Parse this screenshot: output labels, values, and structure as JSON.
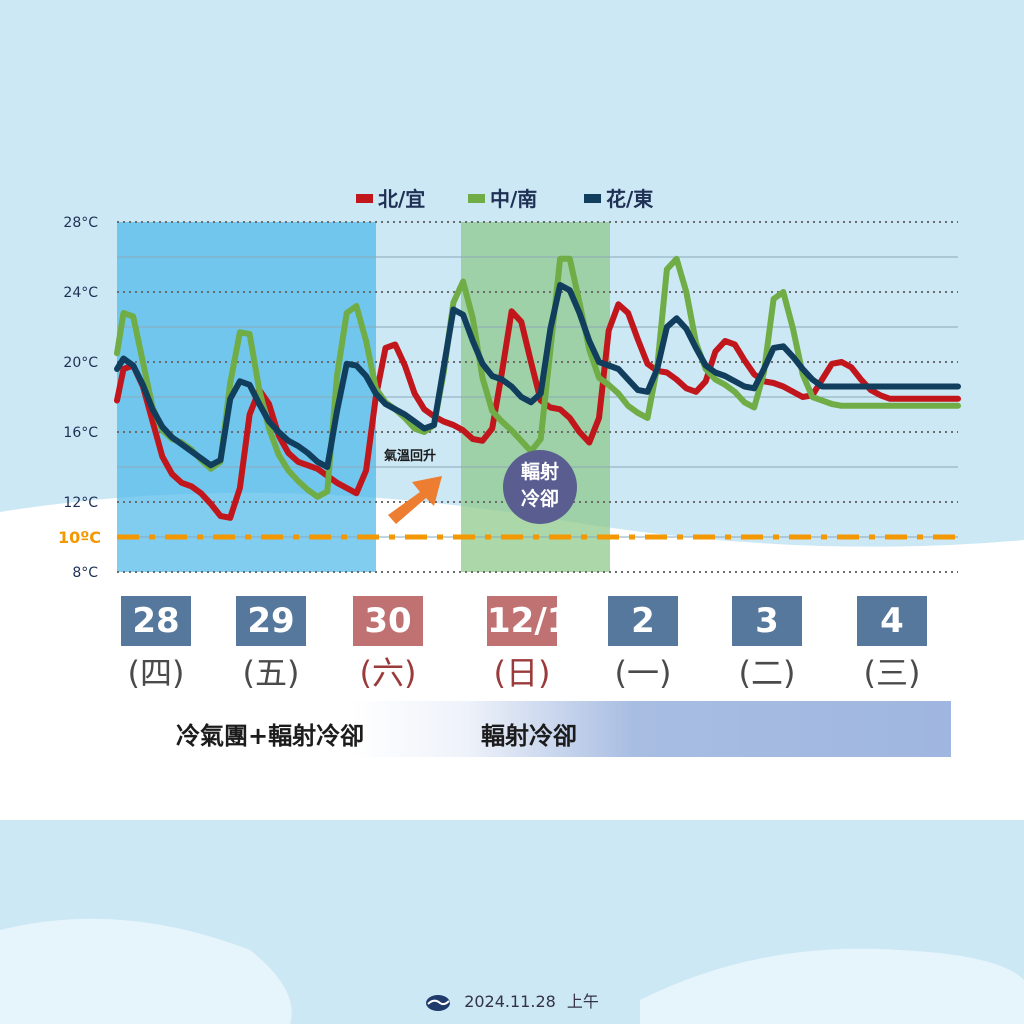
{
  "chart_data": {
    "type": "line",
    "ylim": [
      8,
      28
    ],
    "y_ticks": [
      "28°C",
      "24°C",
      "20°C",
      "16°C",
      "12°C",
      "8°C"
    ],
    "threshold_label": "10ºC",
    "threshold_value": 10,
    "legend": {
      "placement": "top-center"
    },
    "series": [
      {
        "name": "北/宜",
        "color": "#c0161c",
        "x": [
          0,
          0.1,
          0.25,
          0.4,
          0.55,
          0.7,
          0.85,
          1.0,
          1.15,
          1.3,
          1.45,
          1.6,
          1.75,
          1.9,
          2.05,
          2.2,
          2.35,
          2.5,
          2.65,
          2.8,
          2.95,
          3.1,
          3.25,
          3.4,
          3.55,
          3.7,
          3.85,
          4.0,
          4.15,
          4.3,
          4.45,
          4.6,
          4.75,
          4.9,
          5.05,
          5.2,
          5.35,
          5.5,
          5.65,
          5.8,
          5.95,
          6.1,
          6.25,
          6.4,
          6.55,
          6.7,
          6.85,
          7.0,
          7.15,
          7.3,
          7.45,
          7.6,
          7.75,
          7.9,
          8.05,
          8.2,
          8.35,
          8.5,
          8.65,
          8.8,
          8.95,
          9.1,
          9.25,
          9.4,
          9.55,
          9.7,
          9.85,
          10.0,
          10.15,
          10.3,
          10.45,
          10.6,
          10.75,
          10.9,
          11.05,
          11.2,
          11.35,
          11.5,
          11.65,
          11.8,
          11.95,
          12.1,
          12.25,
          12.4,
          12.55,
          12.7,
          12.85,
          13.0
        ],
        "y": [
          17.8,
          19.6,
          19.8,
          18.6,
          16.6,
          14.6,
          13.6,
          13.1,
          12.9,
          12.5,
          11.9,
          11.2,
          11.1,
          12.8,
          17.0,
          18.4,
          17.6,
          15.8,
          14.8,
          14.3,
          14.1,
          13.9,
          13.5,
          13.1,
          12.8,
          12.5,
          13.8,
          18.0,
          20.8,
          21.0,
          19.8,
          18.2,
          17.3,
          16.9,
          16.6,
          16.4,
          16.1,
          15.6,
          15.5,
          16.2,
          19.4,
          22.9,
          22.3,
          20.0,
          17.8,
          17.4,
          17.3,
          16.8,
          16.0,
          15.4,
          16.8,
          21.8,
          23.3,
          22.8,
          21.3,
          19.9,
          19.5,
          19.4,
          19.0,
          18.5,
          18.3,
          18.9,
          20.6,
          21.2,
          21.0,
          20.1,
          19.3,
          18.9,
          18.8,
          18.6,
          18.3,
          18.0,
          18.1,
          19.0,
          19.9,
          20.0,
          19.7,
          19.0,
          18.4,
          18.1,
          17.9,
          17.9,
          17.9,
          17.9,
          17.9,
          17.9,
          17.9,
          17.9
        ]
      },
      {
        "name": "中/南",
        "color": "#70ad47",
        "x": [
          0,
          0.1,
          0.25,
          0.4,
          0.55,
          0.7,
          0.85,
          1.0,
          1.15,
          1.3,
          1.45,
          1.6,
          1.75,
          1.9,
          2.05,
          2.2,
          2.35,
          2.5,
          2.65,
          2.8,
          2.95,
          3.1,
          3.25,
          3.4,
          3.55,
          3.7,
          3.85,
          4.0,
          4.15,
          4.3,
          4.45,
          4.6,
          4.75,
          4.9,
          5.05,
          5.2,
          5.35,
          5.5,
          5.65,
          5.8,
          5.95,
          6.1,
          6.25,
          6.4,
          6.55,
          6.7,
          6.85,
          7.0,
          7.15,
          7.3,
          7.45,
          7.6,
          7.75,
          7.9,
          8.05,
          8.2,
          8.35,
          8.5,
          8.65,
          8.8,
          8.95,
          9.1,
          9.25,
          9.4,
          9.55,
          9.7,
          9.85,
          10.0,
          10.15,
          10.3,
          10.45,
          10.6,
          10.75,
          10.9,
          11.05,
          11.2,
          11.35,
          11.5,
          11.65,
          11.8,
          11.95,
          12.1,
          12.25,
          12.4,
          12.55,
          12.7,
          12.85,
          13.0
        ],
        "y": [
          20.5,
          22.8,
          22.6,
          20.0,
          17.4,
          16.1,
          15.6,
          15.4,
          15.0,
          14.4,
          13.9,
          14.3,
          18.8,
          21.7,
          21.6,
          18.4,
          16.2,
          14.7,
          13.8,
          13.2,
          12.7,
          12.3,
          12.6,
          19.2,
          22.8,
          23.2,
          21.2,
          18.5,
          17.7,
          17.3,
          16.8,
          16.2,
          16.0,
          16.4,
          19.4,
          23.4,
          24.6,
          22.5,
          19.1,
          17.2,
          16.6,
          16.1,
          15.5,
          14.9,
          15.6,
          20.7,
          25.9,
          25.9,
          23.4,
          20.7,
          19.1,
          18.7,
          18.2,
          17.5,
          17.1,
          16.8,
          19.7,
          25.3,
          25.9,
          24.0,
          21.1,
          19.6,
          19.0,
          18.7,
          18.3,
          17.7,
          17.4,
          19.4,
          23.6,
          24.0,
          21.9,
          19.3,
          18.0,
          17.8,
          17.6,
          17.5,
          17.5,
          17.5,
          17.5,
          17.5,
          17.5,
          17.5,
          17.5,
          17.5,
          17.5,
          17.5,
          17.5,
          17.5
        ]
      },
      {
        "name": "花/東",
        "color": "#113e5c",
        "x": [
          0,
          0.1,
          0.25,
          0.4,
          0.55,
          0.7,
          0.85,
          1.0,
          1.15,
          1.3,
          1.45,
          1.6,
          1.75,
          1.9,
          2.05,
          2.2,
          2.35,
          2.5,
          2.65,
          2.8,
          2.95,
          3.1,
          3.25,
          3.4,
          3.55,
          3.7,
          3.85,
          4.0,
          4.15,
          4.3,
          4.45,
          4.6,
          4.75,
          4.9,
          5.05,
          5.2,
          5.35,
          5.5,
          5.65,
          5.8,
          5.95,
          6.1,
          6.25,
          6.4,
          6.55,
          6.7,
          6.85,
          7.0,
          7.15,
          7.3,
          7.45,
          7.6,
          7.75,
          7.9,
          8.05,
          8.2,
          8.35,
          8.5,
          8.65,
          8.8,
          8.95,
          9.1,
          9.25,
          9.4,
          9.55,
          9.7,
          9.85,
          10.0,
          10.15,
          10.3,
          10.45,
          10.6,
          10.75,
          10.9,
          11.05,
          11.2,
          11.35,
          11.5,
          11.65,
          11.8,
          11.95,
          12.1,
          12.25,
          12.4,
          12.55,
          12.7,
          12.85,
          13.0
        ],
        "y": [
          19.6,
          20.2,
          19.8,
          18.7,
          17.3,
          16.3,
          15.7,
          15.3,
          14.9,
          14.5,
          14.1,
          14.4,
          17.9,
          18.9,
          18.7,
          17.6,
          16.6,
          16.0,
          15.5,
          15.2,
          14.8,
          14.3,
          14.0,
          17.2,
          19.9,
          19.8,
          19.2,
          18.2,
          17.6,
          17.3,
          17.0,
          16.6,
          16.2,
          16.4,
          19.7,
          23.0,
          22.7,
          21.2,
          19.9,
          19.2,
          19.0,
          18.6,
          18.0,
          17.7,
          18.2,
          21.9,
          24.4,
          24.1,
          22.8,
          21.2,
          20.0,
          19.8,
          19.6,
          19.0,
          18.4,
          18.3,
          19.6,
          22.0,
          22.5,
          21.9,
          20.8,
          19.8,
          19.4,
          19.2,
          18.9,
          18.6,
          18.5,
          19.6,
          20.8,
          20.9,
          20.3,
          19.6,
          19.0,
          18.6,
          18.6,
          18.6,
          18.6,
          18.6,
          18.6,
          18.6,
          18.6,
          18.6,
          18.6,
          18.6,
          18.6,
          18.6,
          18.6,
          18.6
        ]
      }
    ],
    "annotations": [
      {
        "text": "氣溫回升"
      },
      {
        "text_lines": [
          "輻射",
          "冷卻"
        ]
      }
    ]
  },
  "days": [
    {
      "date": "28",
      "weekday": "(四)",
      "holiday": false
    },
    {
      "date": "29",
      "weekday": "(五)",
      "holiday": false
    },
    {
      "date": "30",
      "weekday": "(六)",
      "holiday": true
    },
    {
      "date": "12/1",
      "weekday": "(日)",
      "holiday": true
    },
    {
      "date": "2",
      "weekday": "(一)",
      "holiday": false
    },
    {
      "date": "3",
      "weekday": "(二)",
      "holiday": false
    },
    {
      "date": "4",
      "weekday": "(三)",
      "holiday": false
    }
  ],
  "colors": {
    "workday_box": "#55789c",
    "holiday_box": "#c07272",
    "cold_shade": "#4ab8ea",
    "radiation_shade": "#8fc98c",
    "threshold": "#f39800",
    "arrow": "#ed7d31",
    "bubble": "#5a5d8f"
  },
  "phases": [
    {
      "label": "冷氣團+輻射冷卻"
    },
    {
      "label": "輻射冷卻"
    }
  ],
  "footer": {
    "logo_icon": "cwa-logo-icon",
    "date": "2024.11.28",
    "time_of_day": "上午"
  }
}
